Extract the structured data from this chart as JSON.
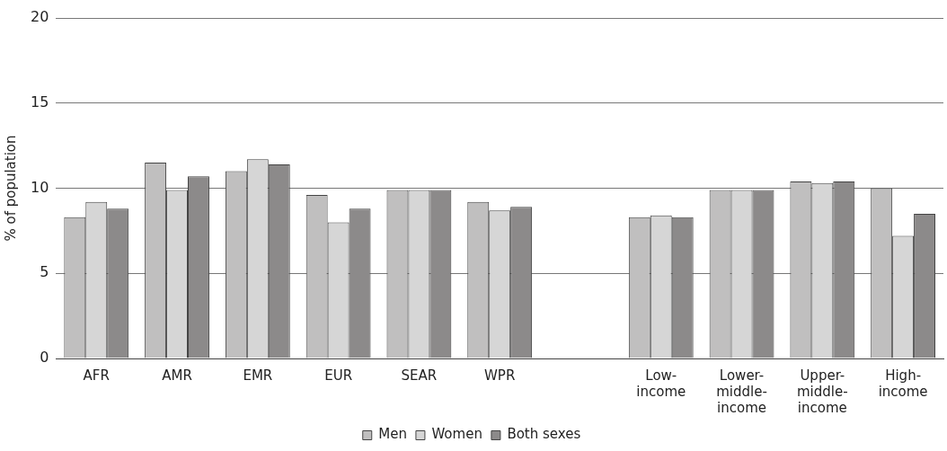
{
  "chart_data": {
    "type": "bar",
    "ylabel": "% of population",
    "categories": [
      "AFR",
      "AMR",
      "EMR",
      "EUR",
      "SEAR",
      "WPR",
      null,
      "Low-\nincome",
      "Lower-\nmiddle-\nincome",
      "Upper-\nmiddle-\nincome",
      "High-\nincome"
    ],
    "series": [
      {
        "name": "Men",
        "color": "#c0bfbf",
        "values": [
          8.3,
          11.5,
          11.0,
          9.6,
          9.9,
          9.2,
          null,
          8.3,
          9.9,
          10.4,
          10.0
        ]
      },
      {
        "name": "Women",
        "color": "#d6d6d6",
        "values": [
          9.2,
          9.9,
          11.7,
          8.0,
          9.9,
          8.7,
          null,
          8.4,
          9.9,
          10.3,
          7.2
        ]
      },
      {
        "name": "Both sexes",
        "color": "#8c8a8a",
        "values": [
          8.8,
          10.7,
          11.4,
          8.8,
          9.9,
          8.9,
          null,
          8.3,
          9.9,
          10.4,
          8.5
        ]
      }
    ],
    "ylim": [
      0,
      20
    ],
    "yticks": [
      0,
      5,
      10,
      15,
      20
    ],
    "grid": "y",
    "legend": "bottom"
  }
}
